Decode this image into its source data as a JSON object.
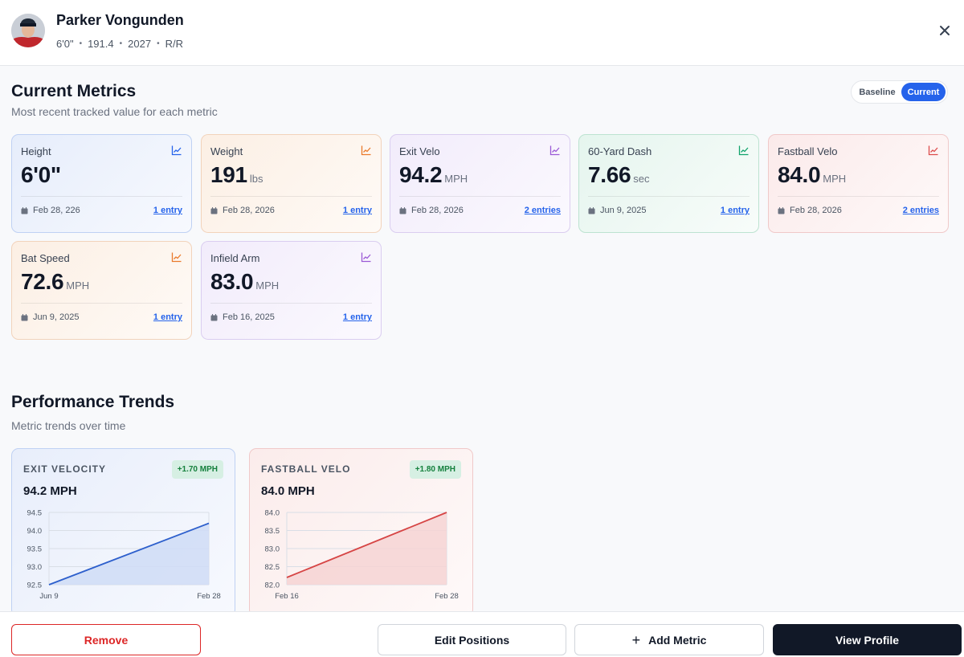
{
  "player": {
    "name": "Parker Vongunden",
    "height": "6'0\"",
    "weight": "191.4",
    "class_year": "2027",
    "bats_throws": "R/R"
  },
  "current_metrics": {
    "title": "Current Metrics",
    "subtitle": "Most recent tracked value for each metric",
    "toggle": {
      "baseline": "Baseline",
      "current": "Current",
      "selected": "Current"
    },
    "cards": [
      {
        "label": "Height",
        "value": "6'0\"",
        "unit": "",
        "date": "Feb 28, 226",
        "entries": "1 entry",
        "color": "#2563eb"
      },
      {
        "label": "Weight",
        "value": "191",
        "unit": "lbs",
        "date": "Feb 28, 2026",
        "entries": "1 entry",
        "color": "#ea7a2b"
      },
      {
        "label": "Exit Velo",
        "value": "94.2",
        "unit": "MPH",
        "date": "Feb 28, 2026",
        "entries": "2 entries",
        "color": "#9b59d6"
      },
      {
        "label": "60-Yard Dash",
        "value": "7.66",
        "unit": "sec",
        "date": "Jun 9, 2025",
        "entries": "1 entry",
        "color": "#10a36b"
      },
      {
        "label": "Fastball Velo",
        "value": "84.0",
        "unit": "MPH",
        "date": "Feb 28, 2026",
        "entries": "2 entries",
        "color": "#dc4b4b"
      },
      {
        "label": "Bat Speed",
        "value": "72.6",
        "unit": "MPH",
        "date": "Jun 9, 2025",
        "entries": "1 entry",
        "color": "#ea7a2b"
      },
      {
        "label": "Infield Arm",
        "value": "83.0",
        "unit": "MPH",
        "date": "Feb 16, 2025",
        "entries": "1 entry",
        "color": "#9b59d6"
      }
    ]
  },
  "performance_trends": {
    "title": "Performance Trends",
    "subtitle": "Metric trends over time",
    "cards": [
      {
        "title": "EXIT VELOCITY",
        "badge": "+1.70 MPH",
        "value": "94.2 MPH",
        "chart_data": {
          "type": "area",
          "x": [
            "Jun 9",
            "Feb 28"
          ],
          "values": [
            92.5,
            94.2
          ],
          "yticks": [
            "94.5",
            "94.0",
            "93.5",
            "93.0",
            "92.5"
          ],
          "ylim": [
            92.5,
            94.5
          ],
          "line_color": "#2d5fcc",
          "fill_color": "#cfdcf6"
        }
      },
      {
        "title": "FASTBALL VELO",
        "badge": "+1.80 MPH",
        "value": "84.0 MPH",
        "chart_data": {
          "type": "area",
          "x": [
            "Feb 16",
            "Feb 28"
          ],
          "values": [
            82.2,
            84.0
          ],
          "yticks": [
            "84.0",
            "83.5",
            "83.0",
            "82.5",
            "82.0"
          ],
          "ylim": [
            82.0,
            84.0
          ],
          "line_color": "#d64545",
          "fill_color": "#f6d3d3"
        }
      }
    ]
  },
  "footer": {
    "remove": "Remove",
    "edit_positions": "Edit Positions",
    "add_metric": "Add Metric",
    "view_profile": "View Profile"
  }
}
